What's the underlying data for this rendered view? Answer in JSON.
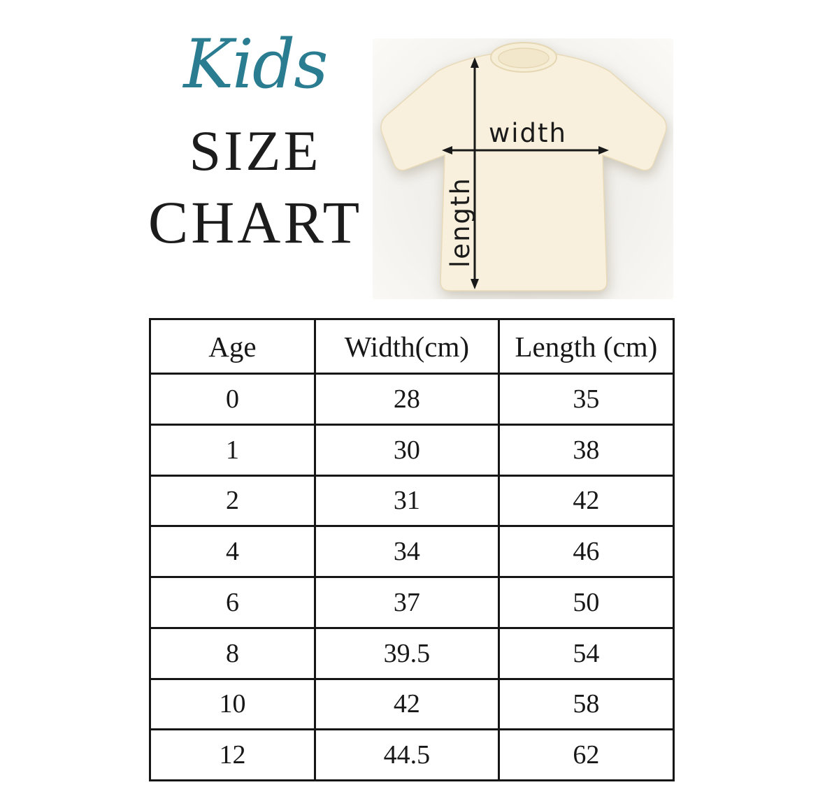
{
  "title": {
    "script": "Kids",
    "line1": "SIZE",
    "line2": "CHART"
  },
  "diagram": {
    "width_label": "width",
    "length_label": "length"
  },
  "colors": {
    "accent_teal": "#2a7c91",
    "ink": "#1c1c1c",
    "shirt_cream": "#f8f0dc",
    "photo_background": "#f2f0ec",
    "table_border": "#161616"
  },
  "chart_data": {
    "type": "table",
    "title": "Kids Size Chart",
    "columns": [
      "Age",
      "Width(cm)",
      "Length (cm)"
    ],
    "rows": [
      [
        "0",
        "28",
        "35"
      ],
      [
        "1",
        "30",
        "38"
      ],
      [
        "2",
        "31",
        "42"
      ],
      [
        "4",
        "34",
        "46"
      ],
      [
        "6",
        "37",
        "50"
      ],
      [
        "8",
        "39.5",
        "54"
      ],
      [
        "10",
        "42",
        "58"
      ],
      [
        "12",
        "44.5",
        "62"
      ]
    ]
  }
}
